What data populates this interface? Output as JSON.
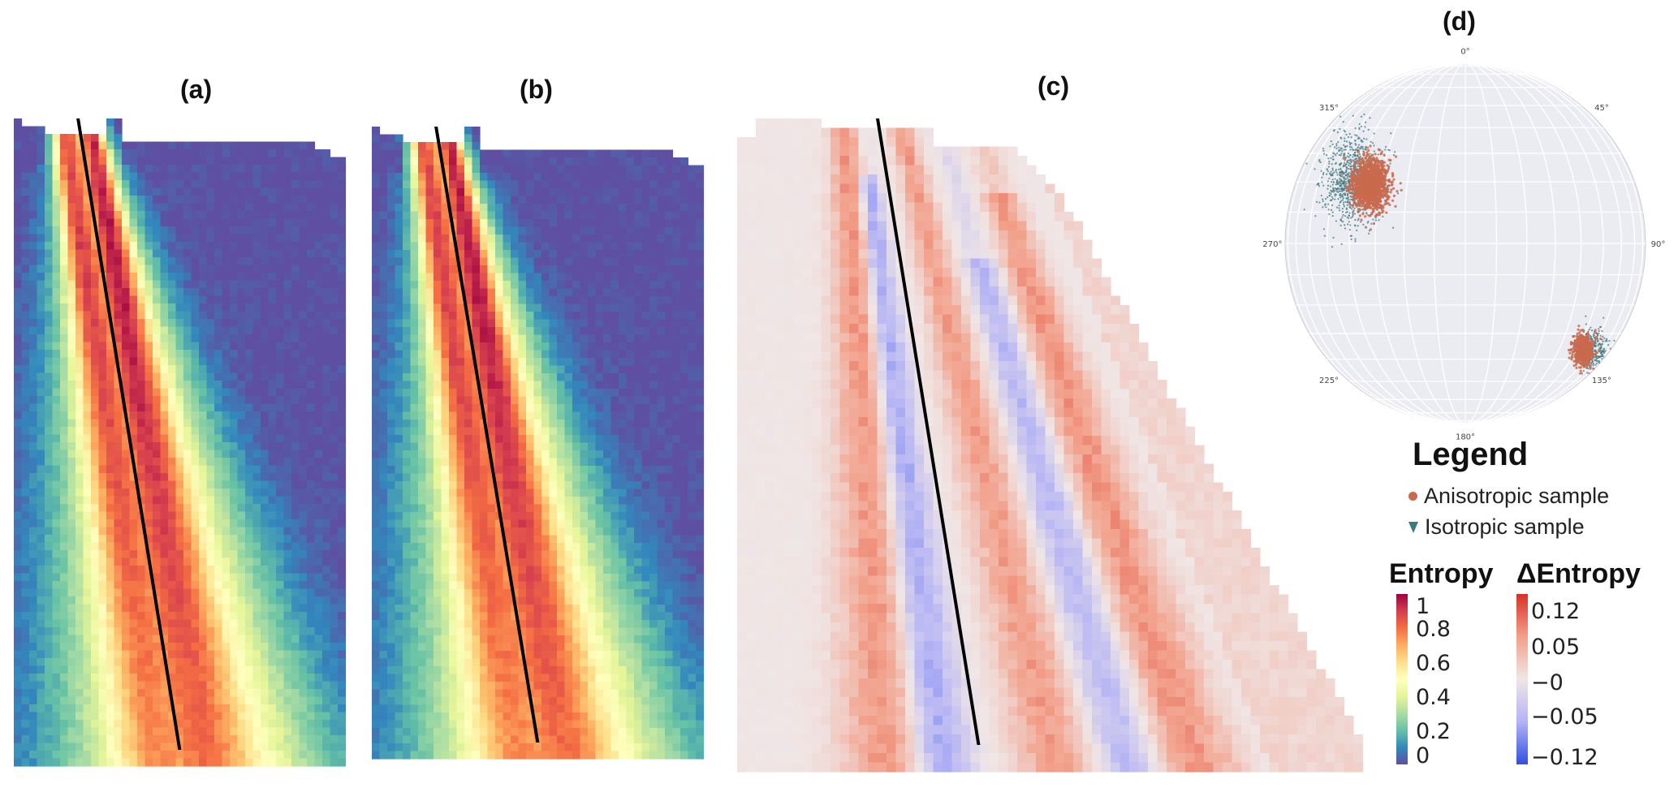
{
  "panels": {
    "a": {
      "label": "(a)"
    },
    "b": {
      "label": "(b)"
    },
    "c": {
      "label": "(c)"
    },
    "d": {
      "label": "(d)"
    }
  },
  "chart_data": [
    {
      "type": "heatmap",
      "panel": "(a)",
      "colormap": "Spectral_r",
      "range": [
        0,
        1
      ],
      "colorbar": "Entropy"
    },
    {
      "type": "heatmap",
      "panel": "(b)",
      "colormap": "Spectral_r",
      "range": [
        0,
        1
      ],
      "colorbar": "Entropy"
    },
    {
      "type": "heatmap",
      "panel": "(c)",
      "colormap": "coolwarm",
      "range": [
        -0.12,
        0.12
      ],
      "colorbar": "ΔEntropy"
    },
    {
      "type": "scatter",
      "panel": "(d)",
      "projection": "stereonet",
      "azimuth_labels": [
        "0°",
        "45°",
        "90°",
        "135°",
        "180°",
        "225°",
        "270°",
        "315°"
      ],
      "series": [
        {
          "name": "Isotropic sample",
          "color": "#3d7a80",
          "marker": "triangle",
          "clusters": [
            {
              "azimuth_deg": 300,
              "radius": 0.72
            },
            {
              "azimuth_deg": 130,
              "radius": 0.92
            }
          ]
        },
        {
          "name": "Anisotropic sample",
          "color": "#c96a4e",
          "marker": "circle",
          "clusters": [
            {
              "azimuth_deg": 302,
              "radius": 0.62
            },
            {
              "azimuth_deg": 132,
              "radius": 0.88
            }
          ]
        }
      ]
    }
  ],
  "legend": {
    "title": "Legend",
    "entries": [
      {
        "label": "Anisotropic sample",
        "color": "#c96a4e"
      },
      {
        "label": "Isotropic sample",
        "color": "#3d7a80"
      }
    ]
  },
  "colorbars": {
    "entropy": {
      "title": "Entropy",
      "ticks": [
        "1",
        "0.8",
        "0.6",
        "0.4",
        "0.2",
        "0"
      ]
    },
    "delta": {
      "title": "ΔEntropy",
      "ticks": [
        "0.12",
        "0.05",
        "−0",
        "−0.05",
        "−0.12"
      ]
    }
  }
}
